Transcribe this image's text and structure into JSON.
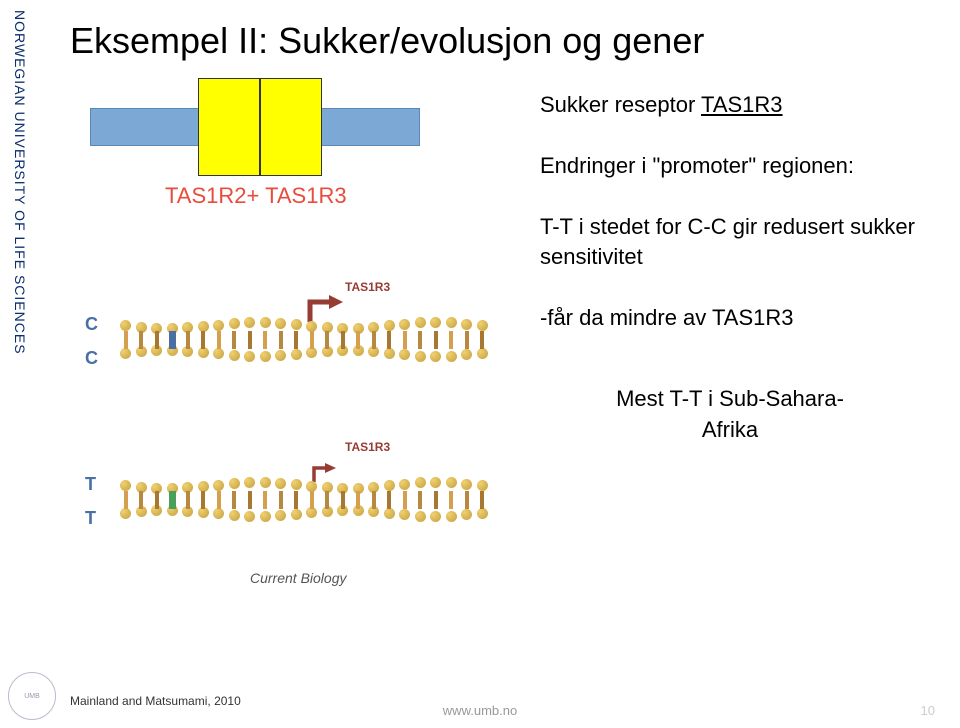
{
  "sidebar": {
    "institution": "NORWEGIAN UNIVERSITY OF LIFE SCIENCES"
  },
  "title": "Eksempel II: Sukker/evolusjon og gener",
  "receptor": {
    "label": "TAS1R2+ TAS1R3",
    "membrane_color": "#7BA8D4",
    "receptor_color": "#FFFF00",
    "label_color": "#e74c3c"
  },
  "dna": {
    "upper": {
      "snp_letter": "C",
      "snp_color": "#4a6fa5",
      "marker_color": "#4a6fa5",
      "promoter_label": "TAS1R3",
      "arrow_color": "#963c32",
      "arrow_size": "large"
    },
    "lower": {
      "snp_letter": "T",
      "snp_color": "#4a6fa5",
      "marker_color": "#4a9f5a",
      "promoter_label": "TAS1R3",
      "arrow_color": "#963c32",
      "arrow_size": "small"
    },
    "bead_color": "#c4a040",
    "journal": "Current Biology"
  },
  "text": {
    "line1_prefix": "Sukker reseptor ",
    "line1_link": "TAS1R3",
    "block2": "Endringer i \"promoter\" regionen:",
    "block3": "T-T i stedet for C-C  gir redusert sukker sensitivitet",
    "block4": "-får da mindre av TAS1R3",
    "block5_line1": "Mest T-T i  Sub-Sahara-",
    "block5_line2": "Afrika"
  },
  "citation": "Mainland and Matsumami, 2010",
  "footer": {
    "url": "www.umb.no",
    "page": "10"
  },
  "colors": {
    "title": "#000000",
    "sidebar_text": "#0a2d6b",
    "body_text": "#000000"
  }
}
